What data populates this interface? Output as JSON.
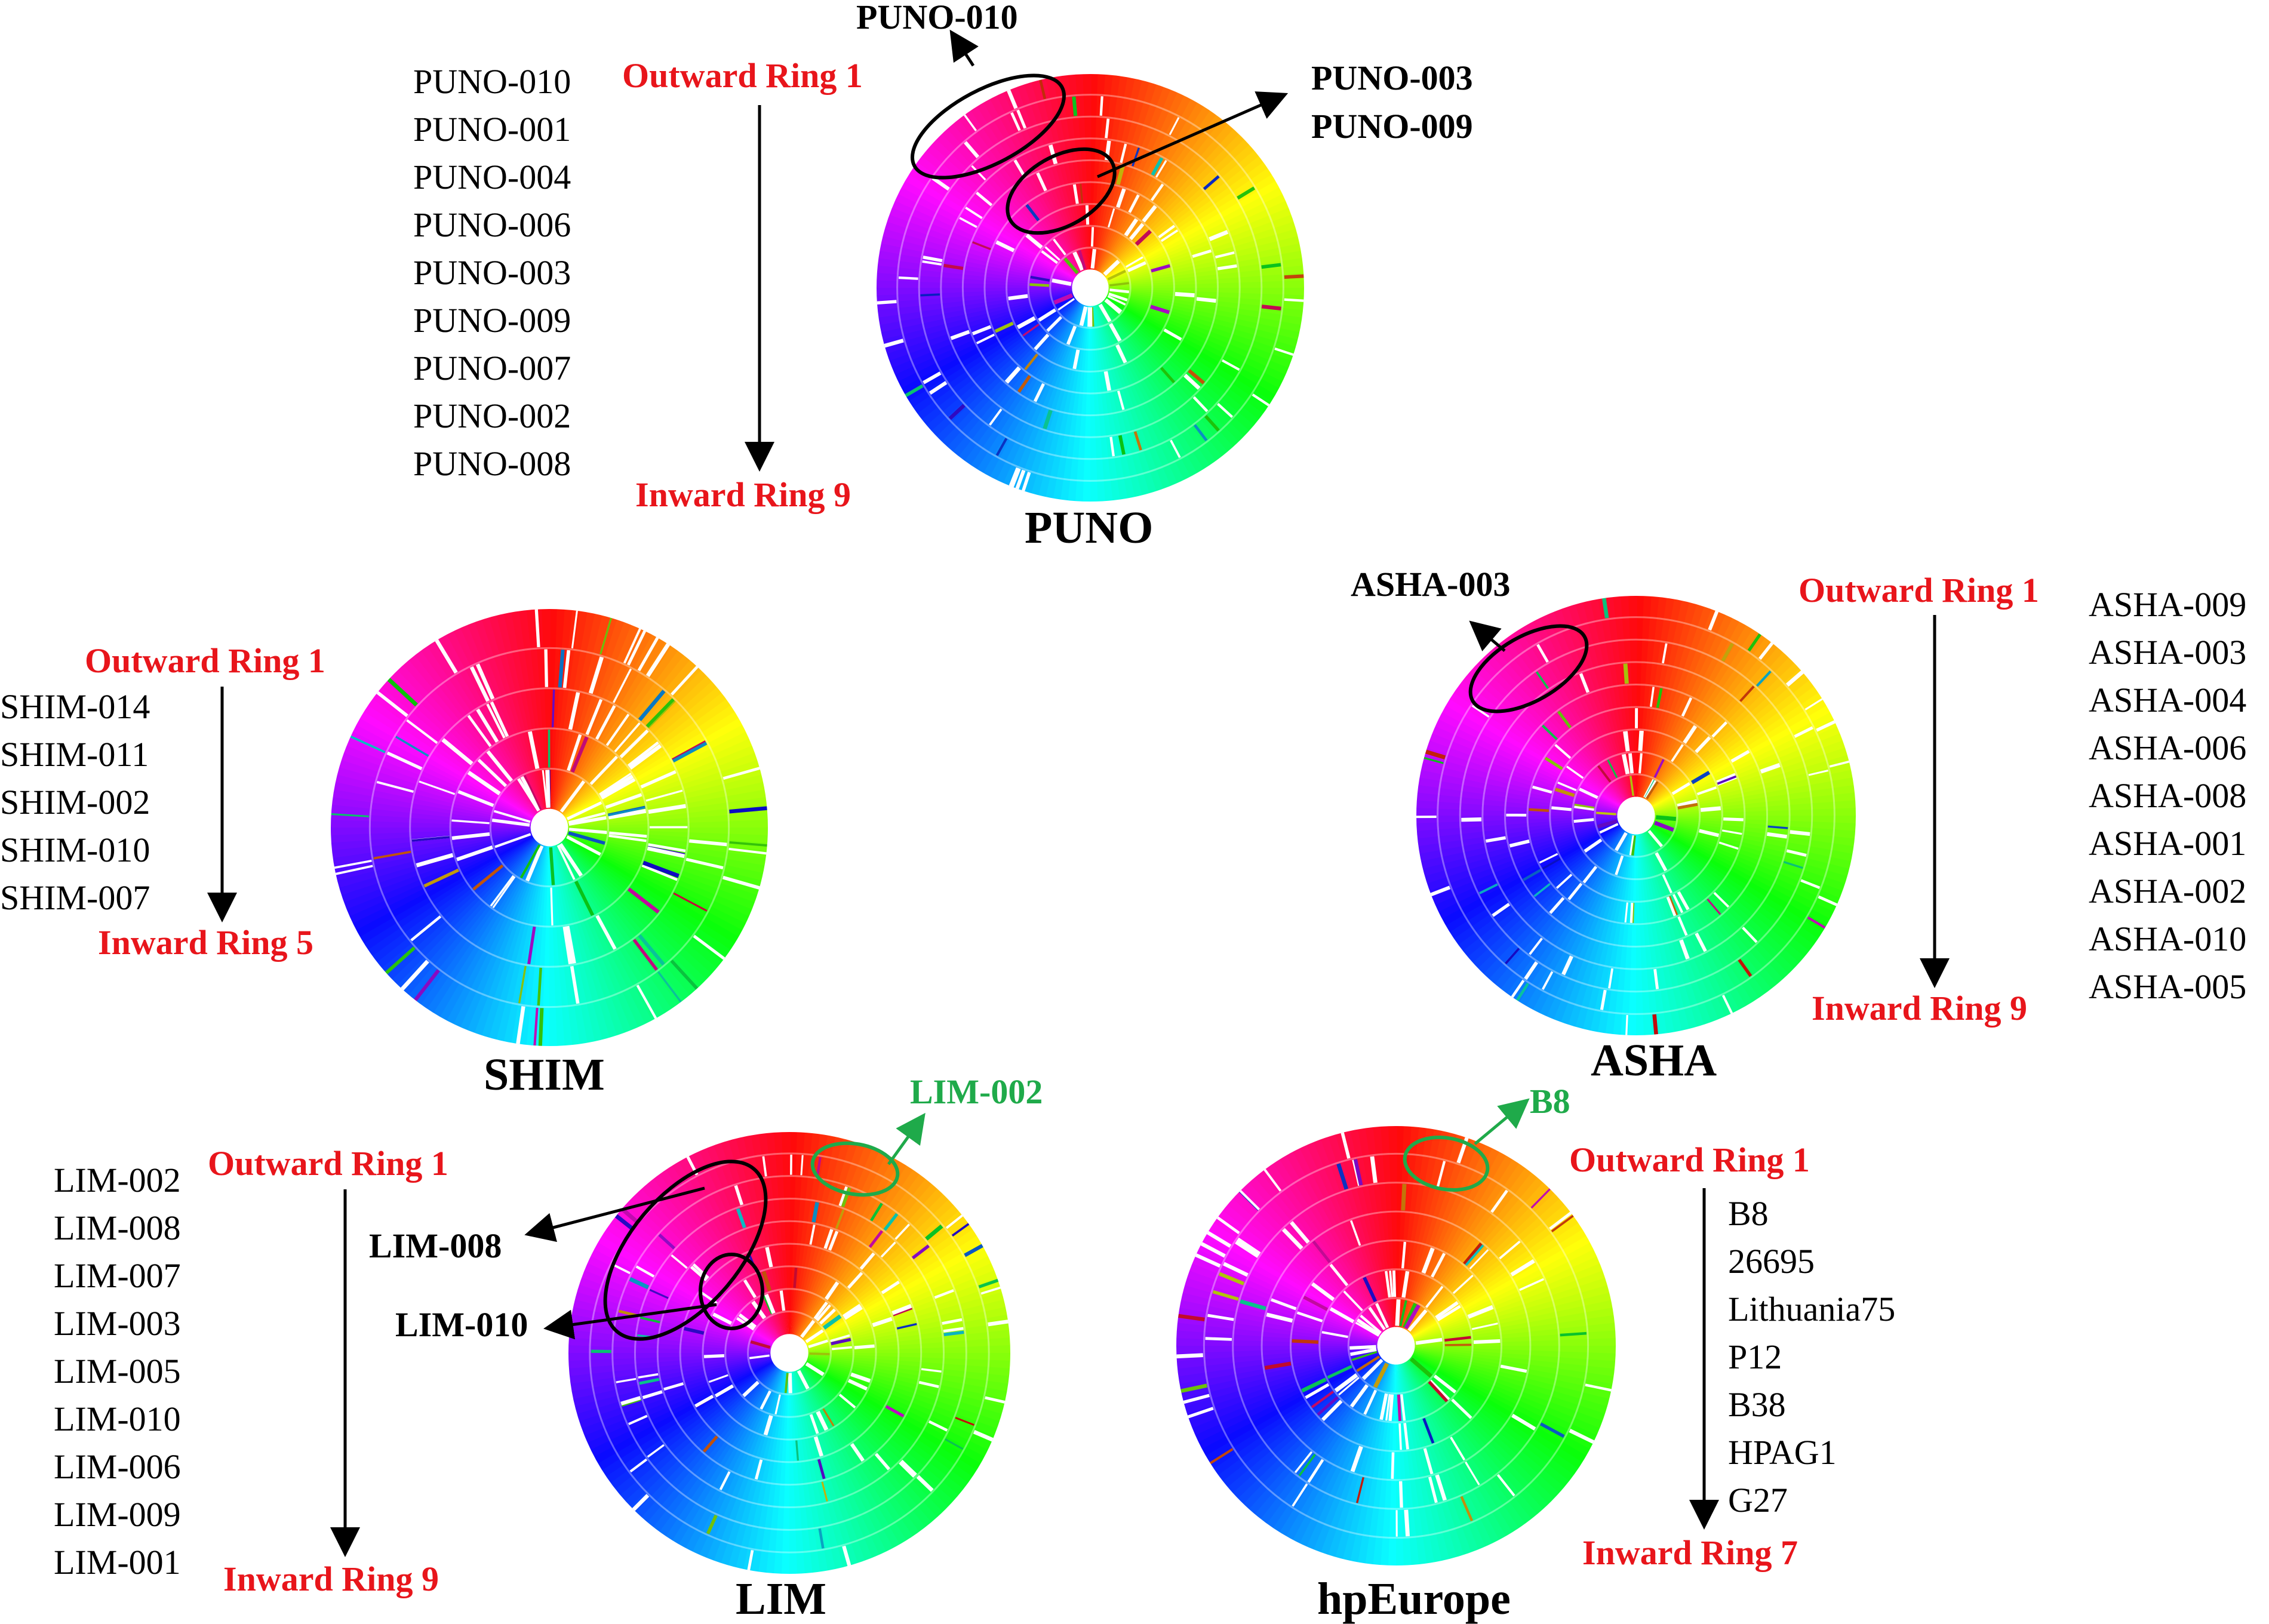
{
  "panels": {
    "puno": {
      "title": "PUNO",
      "outward": "Outward Ring 1",
      "inward": "Inward Ring 9",
      "strains": [
        "PUNO-010",
        "PUNO-001",
        "PUNO-004",
        "PUNO-006",
        "PUNO-003",
        "PUNO-009",
        "PUNO-007",
        "PUNO-002",
        "PUNO-008"
      ],
      "callouts": [
        "PUNO-010",
        "PUNO-003",
        "PUNO-009"
      ]
    },
    "shim": {
      "title": "SHIM",
      "outward": "Outward Ring 1",
      "inward": "Inward Ring 5",
      "strains": [
        "SHIM-014",
        "SHIM-011",
        "SHIM-002",
        "SHIM-010",
        "SHIM-007"
      ]
    },
    "asha": {
      "title": "ASHA",
      "outward": "Outward Ring 1",
      "inward": "Inward Ring 9",
      "strains": [
        "ASHA-009",
        "ASHA-003",
        "ASHA-004",
        "ASHA-006",
        "ASHA-008",
        "ASHA-001",
        "ASHA-002",
        "ASHA-010",
        "ASHA-005"
      ],
      "callouts": [
        "ASHA-003"
      ]
    },
    "lim": {
      "title": "LIM",
      "outward": "Outward Ring 1",
      "inward": "Inward Ring 9",
      "strains": [
        "LIM-002",
        "LIM-008",
        "LIM-007",
        "LIM-003",
        "LIM-005",
        "LIM-010",
        "LIM-006",
        "LIM-009",
        "LIM-001"
      ],
      "callouts": [
        "LIM-008",
        "LIM-010"
      ],
      "highlight": "LIM-002"
    },
    "hpeurope": {
      "title": "hpEurope",
      "outward": "Outward Ring 1",
      "inward": "Inward Ring 7",
      "strains": [
        "B8",
        "26695",
        "Lithuania75",
        "P12",
        "B38",
        "HPAG1",
        "G27"
      ],
      "highlight": "B8"
    }
  },
  "colors": {
    "ring_label": "#e8151b",
    "highlight": "#1faa4a",
    "text": "#000000"
  }
}
